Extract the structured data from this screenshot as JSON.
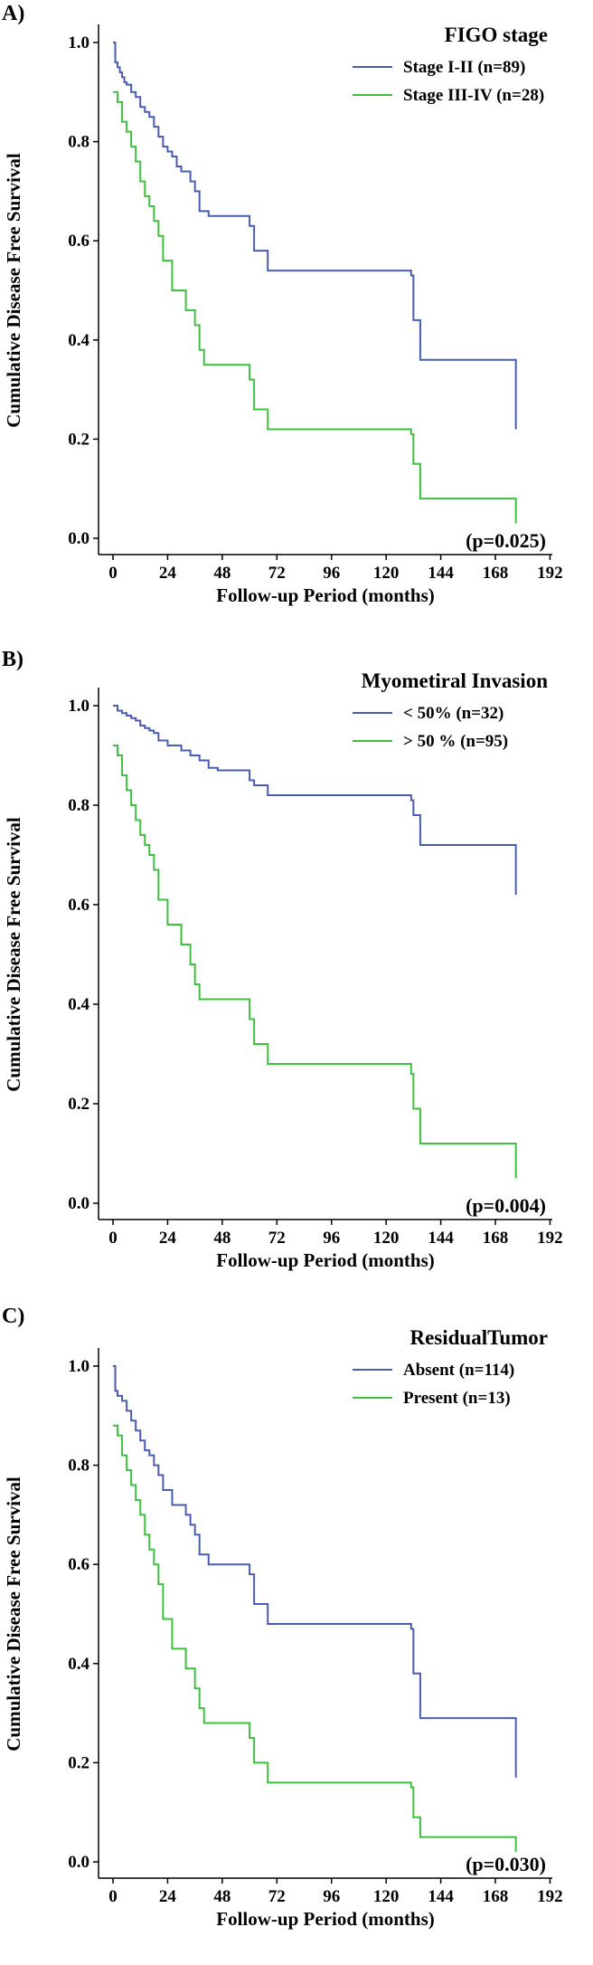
{
  "chart_data": [
    {
      "type": "line",
      "panel_label": "A)",
      "legend_title": "FIGO stage",
      "xlabel": "Follow-up Period (months)",
      "ylabel": "Cumulative Disease Free Survival",
      "xticks": [
        0,
        24,
        48,
        72,
        96,
        120,
        144,
        168,
        192
      ],
      "yticks": [
        0.0,
        0.2,
        0.4,
        0.6,
        0.8,
        1.0
      ],
      "xlim": [
        0,
        195
      ],
      "ylim": [
        0,
        1.0
      ],
      "p_value": "(p=0.025)",
      "series": [
        {
          "name": "Stage I-II (n=89)",
          "color": "#4a5cb0",
          "points": [
            [
              0,
              1.0
            ],
            [
              1,
              0.96
            ],
            [
              2,
              0.95
            ],
            [
              3,
              0.94
            ],
            [
              4,
              0.93
            ],
            [
              5,
              0.92
            ],
            [
              6,
              0.915
            ],
            [
              8,
              0.9
            ],
            [
              10,
              0.89
            ],
            [
              12,
              0.87
            ],
            [
              14,
              0.86
            ],
            [
              16,
              0.85
            ],
            [
              18,
              0.83
            ],
            [
              20,
              0.81
            ],
            [
              22,
              0.79
            ],
            [
              24,
              0.78
            ],
            [
              26,
              0.77
            ],
            [
              28,
              0.75
            ],
            [
              30,
              0.74
            ],
            [
              34,
              0.72
            ],
            [
              36,
              0.7
            ],
            [
              38,
              0.66
            ],
            [
              42,
              0.65
            ],
            [
              60,
              0.63
            ],
            [
              62,
              0.58
            ],
            [
              68,
              0.54
            ],
            [
              131,
              0.53
            ],
            [
              132,
              0.44
            ],
            [
              135,
              0.36
            ],
            [
              177,
              0.36
            ],
            [
              177,
              0.22
            ]
          ]
        },
        {
          "name": "Stage III-IV (n=28)",
          "color": "#3fbf3f",
          "points": [
            [
              0,
              0.9
            ],
            [
              2,
              0.88
            ],
            [
              4,
              0.84
            ],
            [
              6,
              0.82
            ],
            [
              8,
              0.79
            ],
            [
              10,
              0.76
            ],
            [
              12,
              0.72
            ],
            [
              14,
              0.69
            ],
            [
              16,
              0.67
            ],
            [
              18,
              0.64
            ],
            [
              20,
              0.61
            ],
            [
              22,
              0.56
            ],
            [
              26,
              0.5
            ],
            [
              32,
              0.46
            ],
            [
              36,
              0.43
            ],
            [
              38,
              0.38
            ],
            [
              40,
              0.35
            ],
            [
              60,
              0.32
            ],
            [
              62,
              0.26
            ],
            [
              68,
              0.22
            ],
            [
              131,
              0.21
            ],
            [
              132,
              0.15
            ],
            [
              135,
              0.08
            ],
            [
              177,
              0.08
            ],
            [
              177,
              0.03
            ]
          ]
        }
      ]
    },
    {
      "type": "line",
      "panel_label": "B)",
      "legend_title": "Myometiral Invasion",
      "xlabel": "Follow-up Period (months)",
      "ylabel": "Cumulative Disease Free Survival",
      "xticks": [
        0,
        24,
        48,
        72,
        96,
        120,
        144,
        168,
        192
      ],
      "yticks": [
        0.0,
        0.2,
        0.4,
        0.6,
        0.8,
        1.0
      ],
      "xlim": [
        0,
        195
      ],
      "ylim": [
        0,
        1.0
      ],
      "p_value": "(p=0.004)",
      "series": [
        {
          "name": "< 50% (n=32)",
          "color": "#4a5cb0",
          "points": [
            [
              0,
              1.0
            ],
            [
              2,
              0.99
            ],
            [
              4,
              0.985
            ],
            [
              6,
              0.98
            ],
            [
              8,
              0.975
            ],
            [
              10,
              0.97
            ],
            [
              12,
              0.96
            ],
            [
              14,
              0.955
            ],
            [
              16,
              0.95
            ],
            [
              18,
              0.945
            ],
            [
              20,
              0.93
            ],
            [
              24,
              0.92
            ],
            [
              30,
              0.91
            ],
            [
              34,
              0.9
            ],
            [
              38,
              0.89
            ],
            [
              42,
              0.875
            ],
            [
              46,
              0.87
            ],
            [
              60,
              0.85
            ],
            [
              62,
              0.84
            ],
            [
              68,
              0.82
            ],
            [
              131,
              0.81
            ],
            [
              132,
              0.78
            ],
            [
              135,
              0.72
            ],
            [
              177,
              0.72
            ],
            [
              177,
              0.62
            ]
          ]
        },
        {
          "name": "> 50 % (n=95)",
          "color": "#3fbf3f",
          "points": [
            [
              0,
              0.92
            ],
            [
              2,
              0.9
            ],
            [
              4,
              0.86
            ],
            [
              6,
              0.83
            ],
            [
              8,
              0.8
            ],
            [
              10,
              0.77
            ],
            [
              12,
              0.74
            ],
            [
              14,
              0.72
            ],
            [
              16,
              0.7
            ],
            [
              18,
              0.67
            ],
            [
              20,
              0.61
            ],
            [
              24,
              0.56
            ],
            [
              30,
              0.52
            ],
            [
              34,
              0.48
            ],
            [
              36,
              0.44
            ],
            [
              38,
              0.41
            ],
            [
              60,
              0.37
            ],
            [
              62,
              0.32
            ],
            [
              68,
              0.28
            ],
            [
              131,
              0.26
            ],
            [
              132,
              0.19
            ],
            [
              135,
              0.12
            ],
            [
              177,
              0.12
            ],
            [
              177,
              0.05
            ]
          ]
        }
      ]
    },
    {
      "type": "line",
      "panel_label": "C)",
      "legend_title": "ResidualTumor",
      "xlabel": "Follow-up Period (months)",
      "ylabel": "Cumulative Disease Free Survival",
      "xticks": [
        0,
        24,
        48,
        72,
        96,
        120,
        144,
        168,
        192
      ],
      "yticks": [
        0.0,
        0.2,
        0.4,
        0.6,
        0.8,
        1.0
      ],
      "xlim": [
        0,
        195
      ],
      "ylim": [
        0,
        1.0
      ],
      "p_value": "(p=0.030)",
      "series": [
        {
          "name": "Absent (n=114)",
          "color": "#4a5cb0",
          "points": [
            [
              0,
              1.0
            ],
            [
              1,
              0.95
            ],
            [
              2,
              0.94
            ],
            [
              4,
              0.93
            ],
            [
              6,
              0.91
            ],
            [
              8,
              0.89
            ],
            [
              10,
              0.87
            ],
            [
              12,
              0.85
            ],
            [
              14,
              0.83
            ],
            [
              16,
              0.82
            ],
            [
              18,
              0.8
            ],
            [
              20,
              0.78
            ],
            [
              22,
              0.75
            ],
            [
              26,
              0.72
            ],
            [
              32,
              0.7
            ],
            [
              34,
              0.68
            ],
            [
              36,
              0.66
            ],
            [
              38,
              0.62
            ],
            [
              42,
              0.6
            ],
            [
              60,
              0.58
            ],
            [
              62,
              0.52
            ],
            [
              68,
              0.48
            ],
            [
              131,
              0.47
            ],
            [
              132,
              0.38
            ],
            [
              135,
              0.29
            ],
            [
              177,
              0.29
            ],
            [
              177,
              0.17
            ]
          ]
        },
        {
          "name": "Present (n=13)",
          "color": "#3fbf3f",
          "points": [
            [
              0,
              0.88
            ],
            [
              2,
              0.86
            ],
            [
              4,
              0.82
            ],
            [
              6,
              0.79
            ],
            [
              8,
              0.76
            ],
            [
              10,
              0.73
            ],
            [
              12,
              0.7
            ],
            [
              14,
              0.66
            ],
            [
              16,
              0.63
            ],
            [
              18,
              0.6
            ],
            [
              20,
              0.56
            ],
            [
              22,
              0.49
            ],
            [
              26,
              0.43
            ],
            [
              32,
              0.39
            ],
            [
              36,
              0.35
            ],
            [
              38,
              0.31
            ],
            [
              40,
              0.28
            ],
            [
              60,
              0.25
            ],
            [
              62,
              0.2
            ],
            [
              68,
              0.16
            ],
            [
              131,
              0.15
            ],
            [
              132,
              0.09
            ],
            [
              135,
              0.05
            ],
            [
              177,
              0.05
            ],
            [
              177,
              0.02
            ]
          ]
        }
      ]
    }
  ]
}
